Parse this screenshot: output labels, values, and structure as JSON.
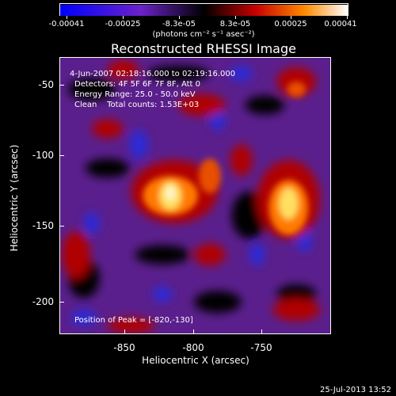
{
  "colorbar": {
    "tick_labels": [
      "-0.00041",
      "-0.00025",
      "-8.3e-05",
      "8.3e-05",
      "0.00025",
      "0.00041"
    ],
    "units": "(photons cm⁻² s⁻¹ asec⁻²)"
  },
  "title": "Reconstructed RHESSI Image",
  "info": {
    "time_range": "4-Jun-2007 02:18:16.000 to 02:19:16.000",
    "detectors": "Detectors: 4F 5F 6F 7F 8F, Att 0",
    "energy": "Energy Range: 25.0 - 50.0 keV",
    "clean": "Clean    Total counts: 1.53E+03",
    "peak": "Position of Peak = [-820,-130]"
  },
  "axes": {
    "xlabel": "Heliocentric X (arcsec)",
    "ylabel": "Heliocentric Y (arcsec)",
    "xticks": [
      "-850",
      "-800",
      "-750"
    ],
    "yticks": [
      "-50",
      "-100",
      "-150",
      "-200"
    ],
    "xlim": [
      -895,
      -690
    ],
    "ylim": [
      -225,
      -30
    ]
  },
  "timestamp": "25-Jul-2013 13:52",
  "colors": {
    "background": "#000000",
    "foreground": "#ffffff"
  }
}
